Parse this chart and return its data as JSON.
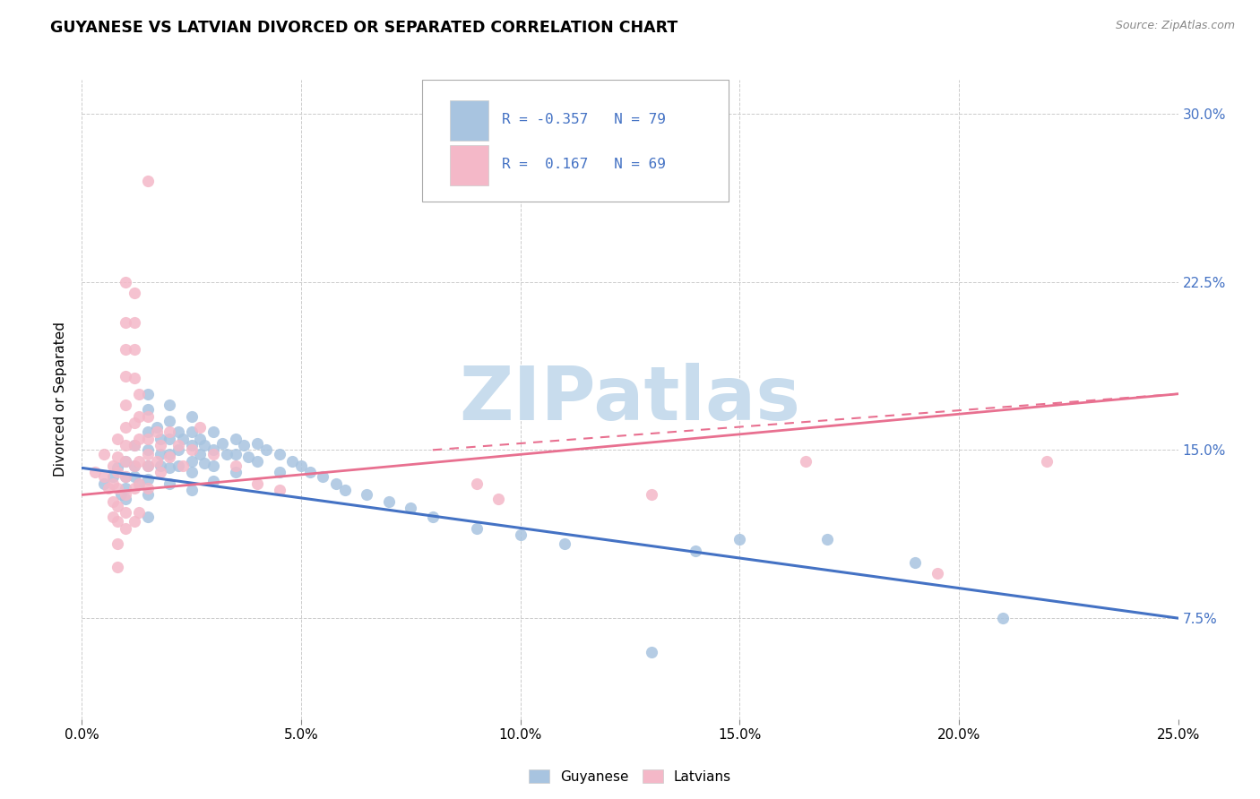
{
  "title": "GUYANESE VS LATVIAN DIVORCED OR SEPARATED CORRELATION CHART",
  "source": "Source: ZipAtlas.com",
  "xlim": [
    0.0,
    0.25
  ],
  "ylim": [
    0.03,
    0.315
  ],
  "ylabel": "Divorced or Separated",
  "guyanese_color": "#a8c4e0",
  "latvian_color": "#f4b8c8",
  "guyanese_line_color": "#4472c4",
  "latvian_line_color": "#e87090",
  "watermark": "ZIPatlas",
  "watermark_color": "#c8dced",
  "r_guyanese": -0.357,
  "n_guyanese": 79,
  "r_latvian": 0.167,
  "n_latvian": 69,
  "guyanese_scatter": [
    [
      0.005,
      0.135
    ],
    [
      0.007,
      0.138
    ],
    [
      0.008,
      0.142
    ],
    [
      0.009,
      0.13
    ],
    [
      0.01,
      0.145
    ],
    [
      0.01,
      0.138
    ],
    [
      0.01,
      0.133
    ],
    [
      0.01,
      0.128
    ],
    [
      0.012,
      0.152
    ],
    [
      0.012,
      0.143
    ],
    [
      0.012,
      0.138
    ],
    [
      0.013,
      0.135
    ],
    [
      0.015,
      0.175
    ],
    [
      0.015,
      0.168
    ],
    [
      0.015,
      0.158
    ],
    [
      0.015,
      0.15
    ],
    [
      0.015,
      0.143
    ],
    [
      0.015,
      0.137
    ],
    [
      0.015,
      0.13
    ],
    [
      0.015,
      0.12
    ],
    [
      0.017,
      0.16
    ],
    [
      0.018,
      0.155
    ],
    [
      0.018,
      0.148
    ],
    [
      0.018,
      0.143
    ],
    [
      0.02,
      0.17
    ],
    [
      0.02,
      0.163
    ],
    [
      0.02,
      0.155
    ],
    [
      0.02,
      0.148
    ],
    [
      0.02,
      0.142
    ],
    [
      0.02,
      0.135
    ],
    [
      0.022,
      0.158
    ],
    [
      0.022,
      0.15
    ],
    [
      0.022,
      0.143
    ],
    [
      0.023,
      0.155
    ],
    [
      0.025,
      0.165
    ],
    [
      0.025,
      0.158
    ],
    [
      0.025,
      0.152
    ],
    [
      0.025,
      0.145
    ],
    [
      0.025,
      0.14
    ],
    [
      0.025,
      0.132
    ],
    [
      0.027,
      0.155
    ],
    [
      0.027,
      0.148
    ],
    [
      0.028,
      0.152
    ],
    [
      0.028,
      0.144
    ],
    [
      0.03,
      0.158
    ],
    [
      0.03,
      0.15
    ],
    [
      0.03,
      0.143
    ],
    [
      0.03,
      0.136
    ],
    [
      0.032,
      0.153
    ],
    [
      0.033,
      0.148
    ],
    [
      0.035,
      0.155
    ],
    [
      0.035,
      0.148
    ],
    [
      0.035,
      0.14
    ],
    [
      0.037,
      0.152
    ],
    [
      0.038,
      0.147
    ],
    [
      0.04,
      0.153
    ],
    [
      0.04,
      0.145
    ],
    [
      0.042,
      0.15
    ],
    [
      0.045,
      0.148
    ],
    [
      0.045,
      0.14
    ],
    [
      0.048,
      0.145
    ],
    [
      0.05,
      0.143
    ],
    [
      0.052,
      0.14
    ],
    [
      0.055,
      0.138
    ],
    [
      0.058,
      0.135
    ],
    [
      0.06,
      0.132
    ],
    [
      0.065,
      0.13
    ],
    [
      0.07,
      0.127
    ],
    [
      0.075,
      0.124
    ],
    [
      0.08,
      0.12
    ],
    [
      0.09,
      0.115
    ],
    [
      0.1,
      0.112
    ],
    [
      0.11,
      0.108
    ],
    [
      0.13,
      0.06
    ],
    [
      0.14,
      0.105
    ],
    [
      0.15,
      0.11
    ],
    [
      0.17,
      0.11
    ],
    [
      0.19,
      0.1
    ],
    [
      0.21,
      0.075
    ]
  ],
  "latvian_scatter": [
    [
      0.003,
      0.14
    ],
    [
      0.005,
      0.148
    ],
    [
      0.005,
      0.138
    ],
    [
      0.006,
      0.133
    ],
    [
      0.007,
      0.143
    ],
    [
      0.007,
      0.135
    ],
    [
      0.007,
      0.127
    ],
    [
      0.007,
      0.12
    ],
    [
      0.008,
      0.155
    ],
    [
      0.008,
      0.147
    ],
    [
      0.008,
      0.14
    ],
    [
      0.008,
      0.133
    ],
    [
      0.008,
      0.125
    ],
    [
      0.008,
      0.118
    ],
    [
      0.008,
      0.108
    ],
    [
      0.008,
      0.098
    ],
    [
      0.01,
      0.225
    ],
    [
      0.01,
      0.207
    ],
    [
      0.01,
      0.195
    ],
    [
      0.01,
      0.183
    ],
    [
      0.01,
      0.17
    ],
    [
      0.01,
      0.16
    ],
    [
      0.01,
      0.152
    ],
    [
      0.01,
      0.145
    ],
    [
      0.01,
      0.138
    ],
    [
      0.01,
      0.13
    ],
    [
      0.01,
      0.122
    ],
    [
      0.01,
      0.115
    ],
    [
      0.012,
      0.22
    ],
    [
      0.012,
      0.207
    ],
    [
      0.012,
      0.195
    ],
    [
      0.012,
      0.182
    ],
    [
      0.012,
      0.162
    ],
    [
      0.012,
      0.152
    ],
    [
      0.012,
      0.143
    ],
    [
      0.012,
      0.133
    ],
    [
      0.012,
      0.118
    ],
    [
      0.013,
      0.175
    ],
    [
      0.013,
      0.165
    ],
    [
      0.013,
      0.155
    ],
    [
      0.013,
      0.145
    ],
    [
      0.013,
      0.135
    ],
    [
      0.013,
      0.122
    ],
    [
      0.015,
      0.27
    ],
    [
      0.015,
      0.165
    ],
    [
      0.015,
      0.155
    ],
    [
      0.015,
      0.143
    ],
    [
      0.015,
      0.133
    ],
    [
      0.015,
      0.148
    ],
    [
      0.017,
      0.158
    ],
    [
      0.017,
      0.145
    ],
    [
      0.018,
      0.152
    ],
    [
      0.018,
      0.14
    ],
    [
      0.02,
      0.158
    ],
    [
      0.02,
      0.147
    ],
    [
      0.022,
      0.152
    ],
    [
      0.023,
      0.143
    ],
    [
      0.025,
      0.15
    ],
    [
      0.027,
      0.16
    ],
    [
      0.03,
      0.148
    ],
    [
      0.035,
      0.143
    ],
    [
      0.04,
      0.135
    ],
    [
      0.045,
      0.132
    ],
    [
      0.09,
      0.135
    ],
    [
      0.095,
      0.128
    ],
    [
      0.13,
      0.13
    ],
    [
      0.165,
      0.145
    ],
    [
      0.195,
      0.095
    ],
    [
      0.22,
      0.145
    ]
  ],
  "guyanese_line": [
    [
      0.0,
      0.142
    ],
    [
      0.25,
      0.075
    ]
  ],
  "latvian_line": [
    [
      0.0,
      0.13
    ],
    [
      0.25,
      0.175
    ]
  ],
  "latvian_line_dashed": [
    [
      0.08,
      0.15
    ],
    [
      0.25,
      0.175
    ]
  ]
}
